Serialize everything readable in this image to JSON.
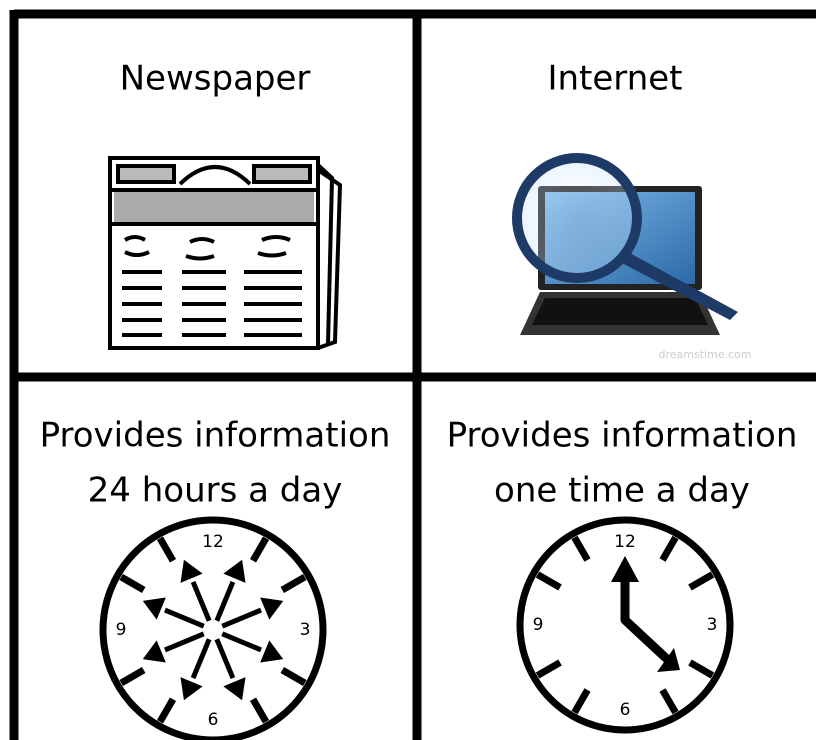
{
  "cells": [
    {
      "label": "Newspaper"
    },
    {
      "label": "Internet",
      "watermark": "dreamstime.com"
    },
    {
      "lines": [
        "Provides information",
        "24 hours a day"
      ],
      "clock_numbers": [
        "12",
        "3",
        "6",
        "9"
      ]
    },
    {
      "lines": [
        "Provides information",
        "one time a day"
      ],
      "clock_numbers": [
        "12",
        "3",
        "6",
        "9"
      ]
    }
  ]
}
